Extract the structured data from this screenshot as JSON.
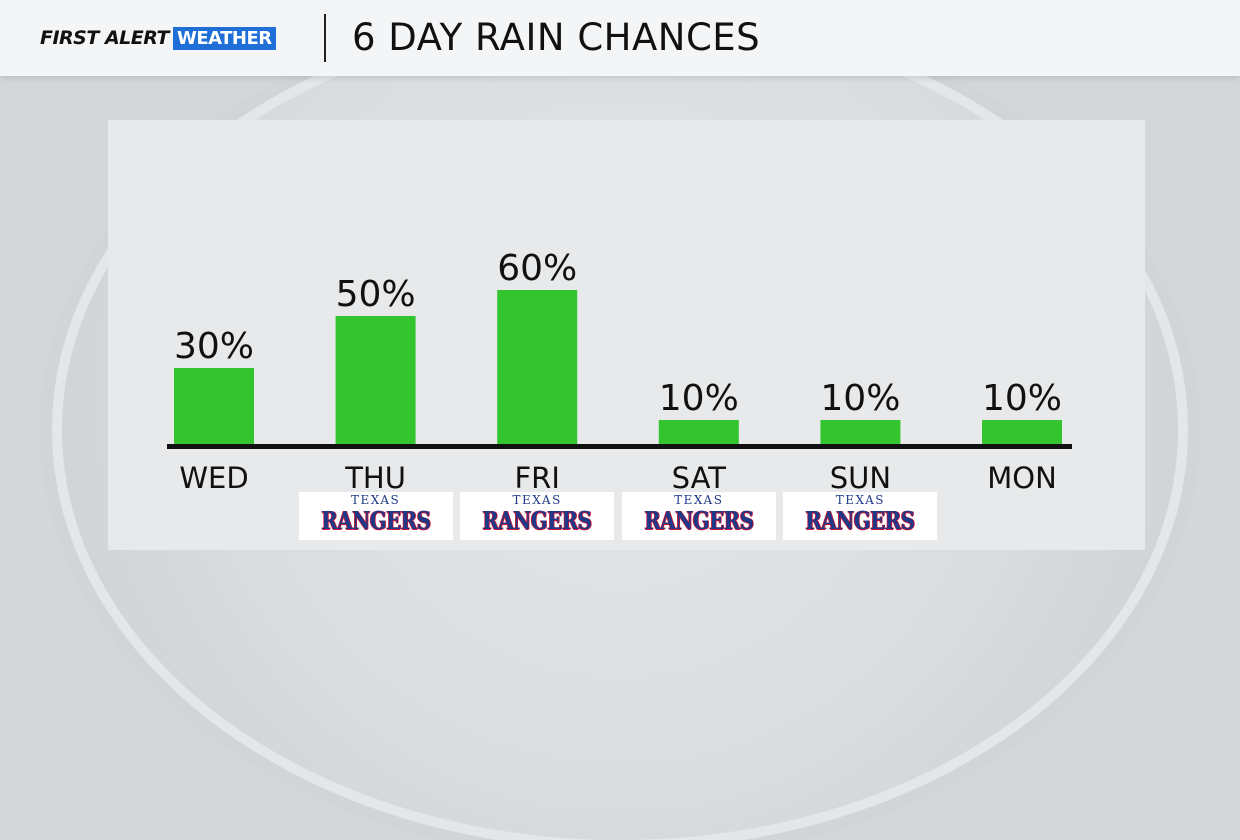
{
  "header": {
    "brand_first": "FIRST ALERT",
    "brand_weather": "WEATHER",
    "title": "6 DAY RAIN CHANCES"
  },
  "colors": {
    "bar": "#33c430",
    "brand_blue": "#1f6fd6",
    "baseline": "#111111"
  },
  "logo": {
    "top": "TEXAS",
    "main": "RANGERS"
  },
  "chart_data": {
    "type": "bar",
    "categories": [
      "WED",
      "THU",
      "FRI",
      "SAT",
      "SUN",
      "MON"
    ],
    "values": [
      30,
      50,
      60,
      10,
      10,
      10
    ],
    "value_labels": [
      "30%",
      "50%",
      "60%",
      "10%",
      "10%",
      "10%"
    ],
    "title": "6 DAY RAIN CHANCES",
    "ylim": [
      0,
      100
    ],
    "grid": false,
    "rangers_game_days": [
      "THU",
      "FRI",
      "SAT",
      "SUN"
    ]
  }
}
